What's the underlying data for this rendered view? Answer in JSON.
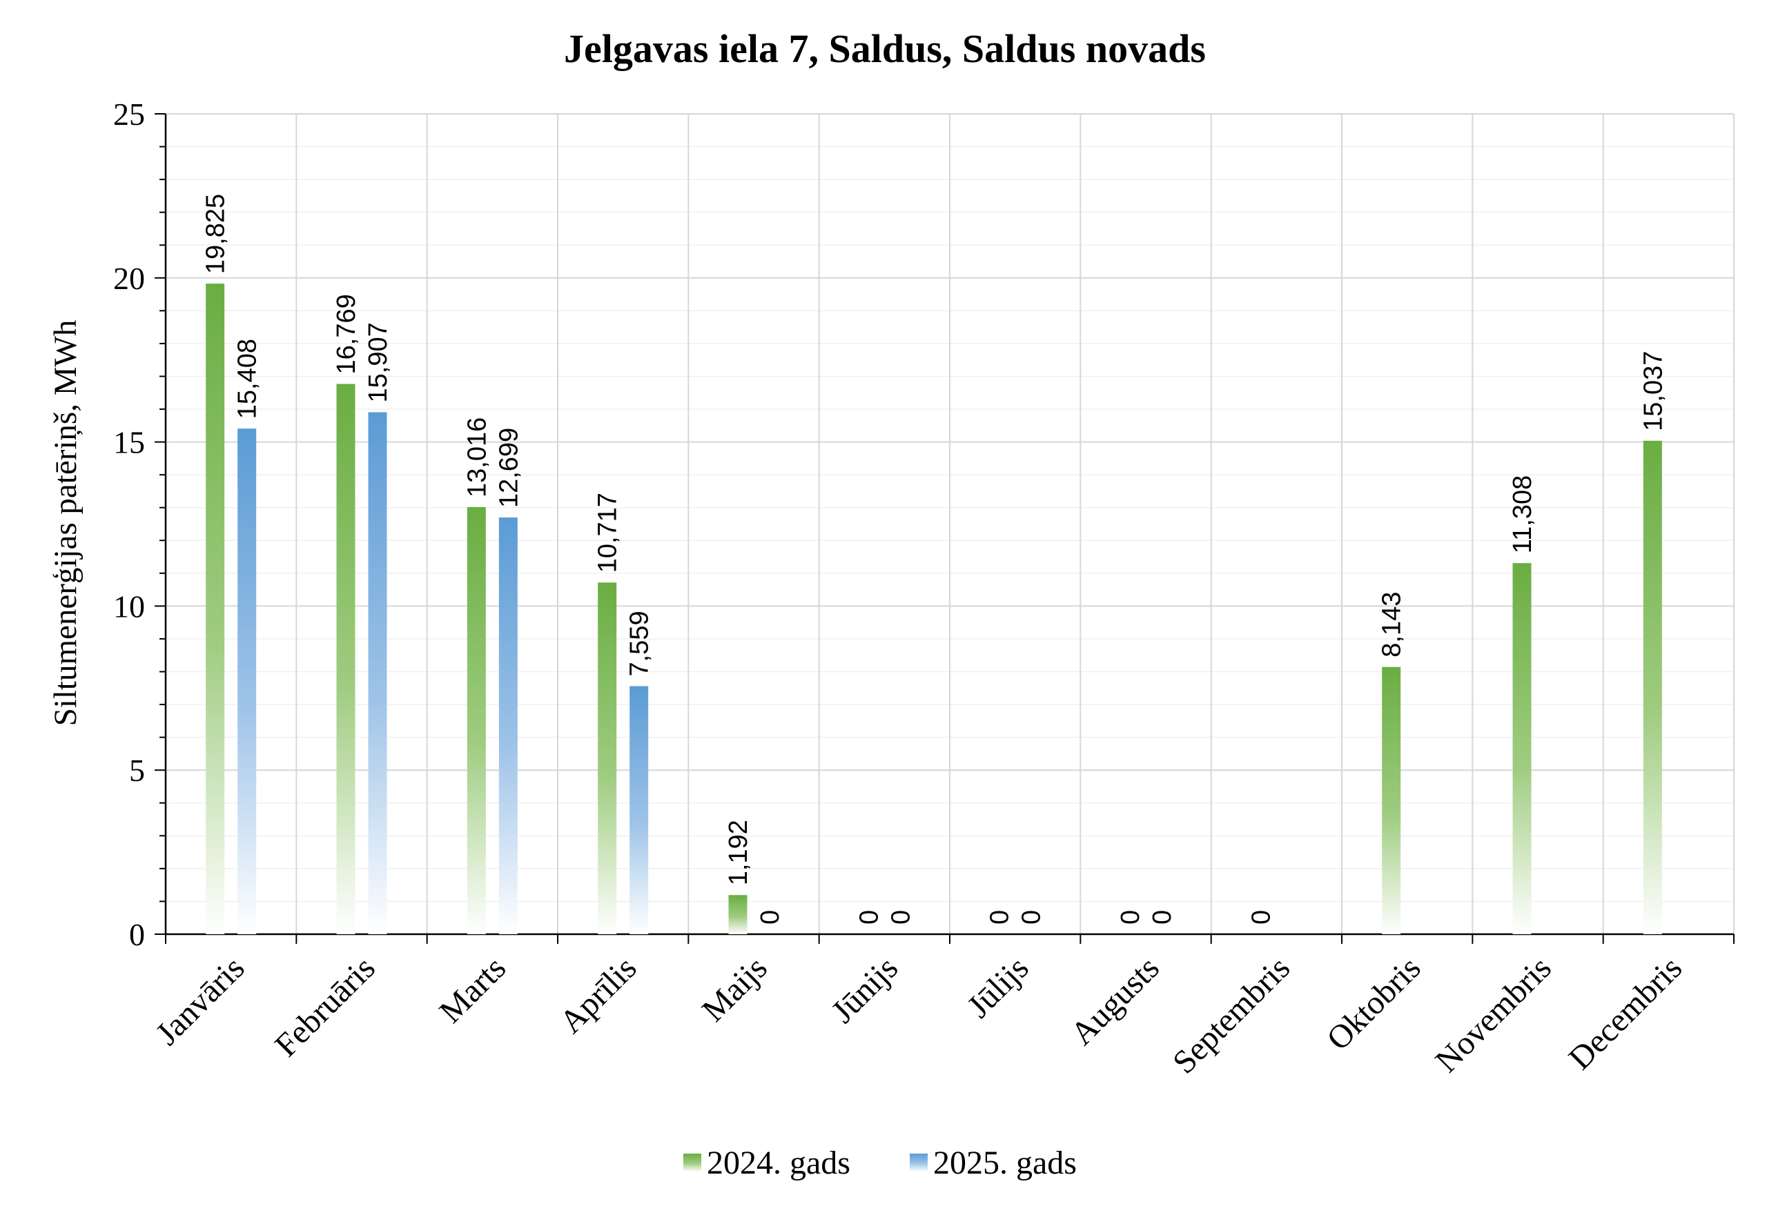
{
  "chart_data": {
    "type": "bar",
    "title": "Jelgavas iela 7, Saldus, Saldus novads",
    "xlabel": "",
    "ylabel": "Siltumenerģijas patēriņš, MWh",
    "ylim": [
      0,
      25
    ],
    "yticks": [
      "0",
      "5",
      "10",
      "15",
      "20",
      "25"
    ],
    "grid": true,
    "legend_position": "bottom",
    "categories": [
      "Janvāris",
      "Februāris",
      "Marts",
      "Aprīlis",
      "Maijs",
      "Jūnijs",
      "Jūlijs",
      "Augusts",
      "Septembris",
      "Oktobris",
      "Novembris",
      "Decembris"
    ],
    "series": [
      {
        "name": "2024. gads",
        "color": "#6aad42",
        "values": [
          19.825,
          16.769,
          13.016,
          10.717,
          1.192,
          0,
          0,
          0,
          0,
          8.143,
          11.308,
          15.037
        ],
        "labels": [
          "19,825",
          "16,769",
          "13,016",
          "10,717",
          "1,192",
          "0",
          "0",
          "0",
          "0",
          "8,143",
          "11,308",
          "15,037"
        ]
      },
      {
        "name": "2025. gads",
        "color": "#5b9bd5",
        "values": [
          15.408,
          15.907,
          12.699,
          7.559,
          0,
          0,
          0,
          0,
          null,
          null,
          null,
          null
        ],
        "labels": [
          "15,408",
          "15,907",
          "12,699",
          "7,559",
          "0",
          "0",
          "0",
          "0",
          "",
          "",
          "",
          ""
        ]
      }
    ]
  }
}
